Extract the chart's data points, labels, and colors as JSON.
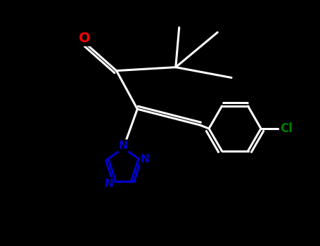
{
  "background_color": "#000000",
  "bond_color": "#ffffff",
  "nitrogen_color": "#0000cd",
  "oxygen_color": "#ff0000",
  "chlorine_color": "#008000",
  "bond_width": 2.2,
  "figsize": [
    4.55,
    3.5
  ],
  "dpi": 100,
  "xlim": [
    0,
    10
  ],
  "ylim": [
    0,
    7.7
  ]
}
